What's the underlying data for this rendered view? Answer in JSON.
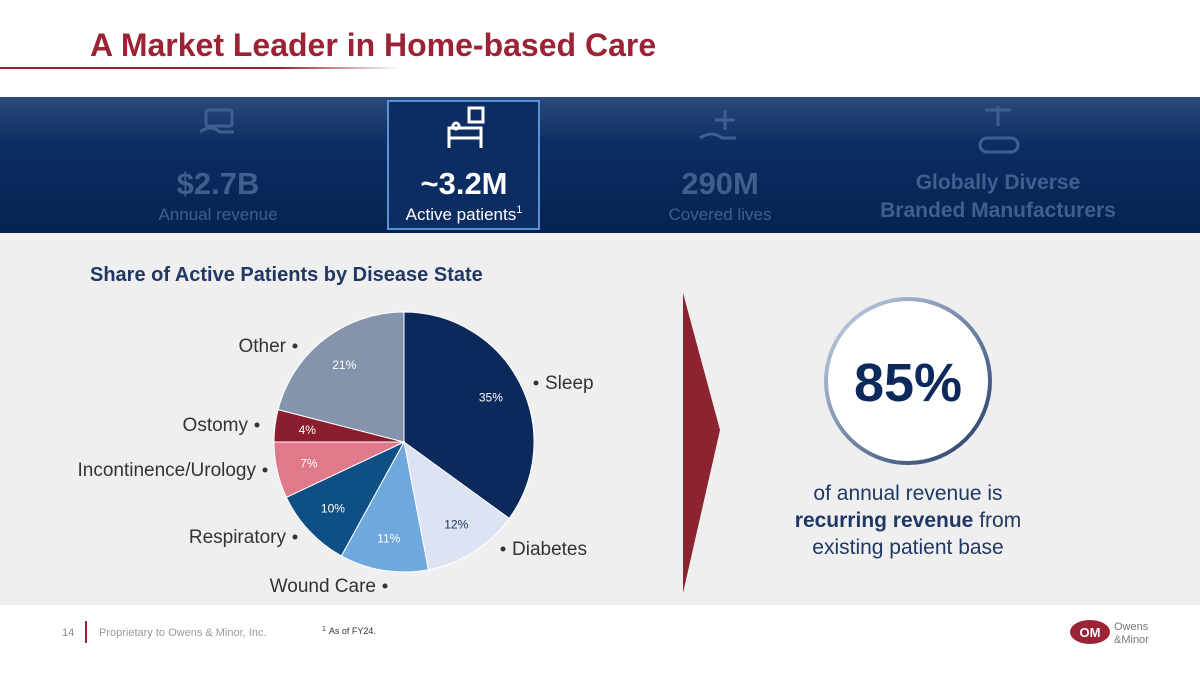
{
  "header": {
    "title": "A Market Leader in Home-based Care"
  },
  "kpis": [
    {
      "value": "$2.7B",
      "label": "Annual revenue"
    },
    {
      "value": "~3.2M",
      "label": "Active patients",
      "footnote_mark": "1"
    },
    {
      "value": "290M",
      "label": "Covered lives"
    },
    {
      "lines": [
        "Globally Diverse",
        "Branded Manufacturers"
      ]
    }
  ],
  "chart_data": {
    "type": "pie",
    "title": "Share of Active Patients by Disease State",
    "categories": [
      "Sleep",
      "Diabetes",
      "Wound Care",
      "Respiratory",
      "Incontinence/Urology",
      "Ostomy",
      "Other"
    ],
    "values": [
      35,
      12,
      11,
      10,
      7,
      4,
      21
    ],
    "value_labels": [
      "35%",
      "12%",
      "11%",
      "10%",
      "7%",
      "4%",
      "21%"
    ],
    "colors": [
      "#0b2a5b",
      "#dde3f3",
      "#6fa8dc",
      "#0e4f86",
      "#e07a8a",
      "#8b1e2e",
      "#8494ad"
    ]
  },
  "callout": {
    "value": "85%",
    "lines": [
      "of annual revenue is",
      "recurring revenue",
      " from",
      "existing patient base"
    ]
  },
  "footer": {
    "page": "14",
    "proprietary": "Proprietary to Owens & Minor, Inc.",
    "footnote_mark": "1",
    "footnote": "As of FY24.",
    "logo_mark": "OM",
    "logo_lines": [
      "Owens",
      "&Minor"
    ]
  }
}
